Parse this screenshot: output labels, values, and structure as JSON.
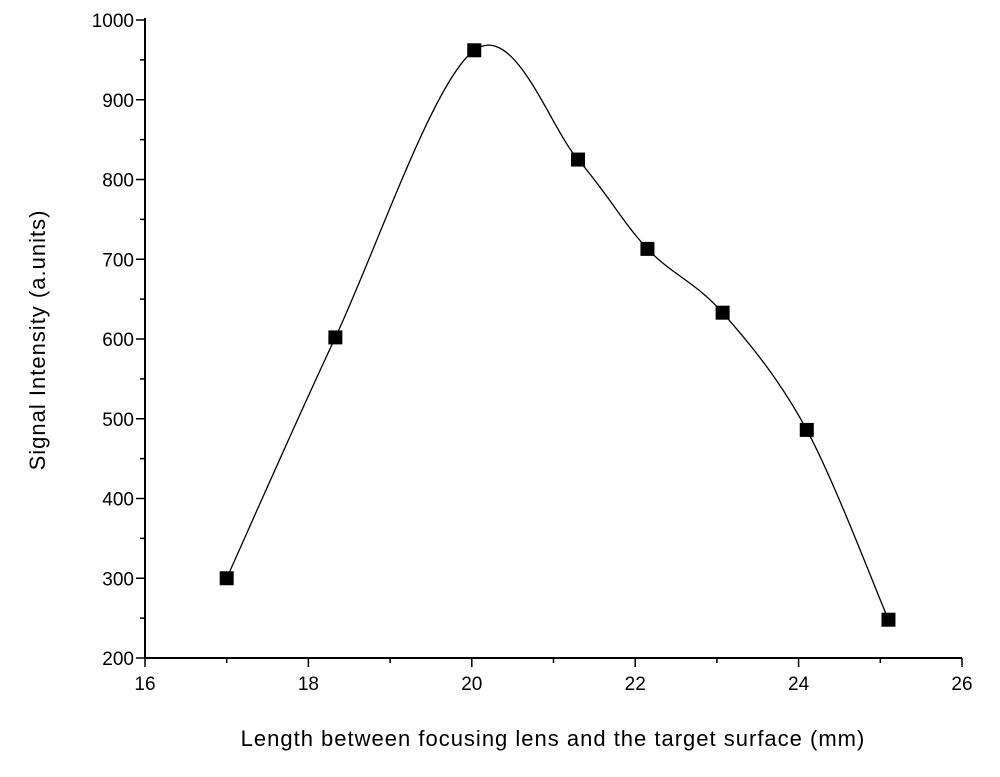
{
  "chart_data": {
    "type": "line",
    "xlabel": "Length between focusing lens and the target surface (mm)",
    "ylabel": "Signal Intensity (a.units)",
    "xlim": [
      16,
      26
    ],
    "ylim": [
      200,
      1000
    ],
    "x_ticks": [
      16,
      18,
      20,
      22,
      24,
      26
    ],
    "y_ticks": [
      200,
      300,
      400,
      500,
      600,
      700,
      800,
      900,
      1000
    ],
    "x_minor_step": 1,
    "y_minor_step": 50,
    "grid": false,
    "marker": "filled-square",
    "series": [
      {
        "x": [
          17.0,
          18.33,
          20.03,
          21.3,
          22.15,
          23.07,
          24.1,
          25.1
        ],
        "y": [
          300,
          602,
          962,
          825,
          713,
          633,
          486,
          248
        ]
      }
    ]
  }
}
